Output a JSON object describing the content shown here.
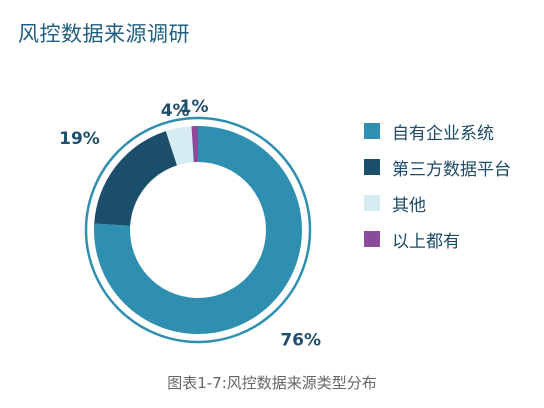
{
  "title": "风控数据来源调研",
  "caption": "图表1-7:风控数据来源类型分布",
  "chart_data": {
    "type": "pie",
    "variant": "donut",
    "title": "风控数据来源调研",
    "categories": [
      "自有企业系统",
      "第三方数据平台",
      "其他",
      "以上都有"
    ],
    "values": [
      76,
      19,
      4,
      1
    ],
    "unit": "%",
    "labels": [
      "76%",
      "19%",
      "4%",
      "1%"
    ],
    "colors": [
      "#2f8fb0",
      "#1a4e6b",
      "#d4ecf2",
      "#8a4c9a"
    ],
    "label_color": "#1f4f6e",
    "legend_position": "right"
  }
}
